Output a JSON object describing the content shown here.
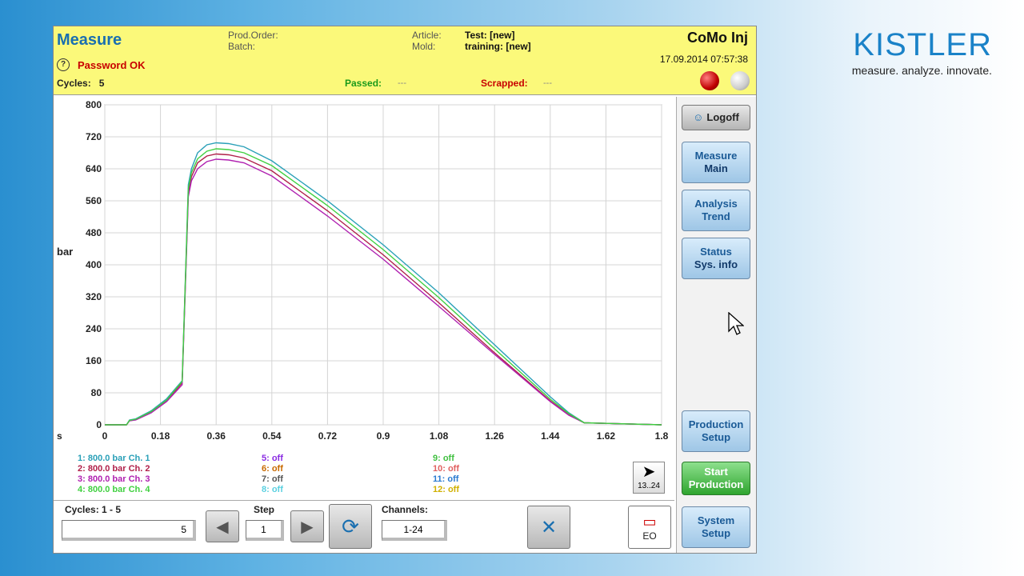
{
  "brand": {
    "name": "KISTLER",
    "tagline": "measure. analyze. innovate."
  },
  "header": {
    "title": "Measure",
    "password_status": "Password OK",
    "cycles_label": "Cycles:",
    "cycles_value": "5",
    "prod_order_label": "Prod.Order:",
    "batch_label": "Batch:",
    "article_label": "Article:",
    "mold_label": "Mold:",
    "article_value": "Test: [new]",
    "mold_value": "training: [new]",
    "passed_label": "Passed:",
    "passed_value": "---",
    "scrapped_label": "Scrapped:",
    "scrapped_value": "---",
    "mode": "CoMo Inj",
    "datetime": "17.09.2014  07:57:38"
  },
  "chart_data": {
    "type": "line",
    "ylabel": "bar",
    "xlabel": "s",
    "xlim": [
      0,
      1.8
    ],
    "ylim": [
      0,
      800
    ],
    "x_ticks": [
      "0",
      "0.18",
      "0.36",
      "0.54",
      "0.72",
      "0.9",
      "1.08",
      "1.26",
      "1.44",
      "1.62",
      "1.8"
    ],
    "y_ticks": [
      "0",
      "80",
      "160",
      "240",
      "320",
      "400",
      "480",
      "560",
      "640",
      "720",
      "800"
    ],
    "grid": true,
    "series": [
      {
        "name": "Ch. 1",
        "color": "#2aa0b8",
        "x": [
          0,
          0.07,
          0.08,
          0.1,
          0.15,
          0.2,
          0.25,
          0.27,
          0.28,
          0.3,
          0.33,
          0.36,
          0.4,
          0.45,
          0.54,
          0.72,
          0.9,
          1.08,
          1.26,
          1.44,
          1.5,
          1.55,
          1.8
        ],
        "y": [
          0,
          0,
          12,
          15,
          35,
          65,
          110,
          600,
          640,
          680,
          700,
          705,
          703,
          695,
          660,
          560,
          450,
          330,
          200,
          70,
          30,
          5,
          0
        ]
      },
      {
        "name": "Ch. 2",
        "color": "#b0204a",
        "x": [
          0,
          0.07,
          0.08,
          0.1,
          0.15,
          0.2,
          0.25,
          0.27,
          0.28,
          0.3,
          0.33,
          0.36,
          0.4,
          0.45,
          0.54,
          0.72,
          0.9,
          1.08,
          1.26,
          1.44,
          1.5,
          1.55,
          1.8
        ],
        "y": [
          0,
          0,
          10,
          13,
          32,
          60,
          105,
          580,
          620,
          655,
          672,
          677,
          675,
          667,
          635,
          535,
          425,
          305,
          180,
          60,
          25,
          5,
          0
        ]
      },
      {
        "name": "Ch. 3",
        "color": "#b020b0",
        "x": [
          0,
          0.07,
          0.08,
          0.1,
          0.15,
          0.2,
          0.25,
          0.27,
          0.28,
          0.3,
          0.33,
          0.36,
          0.4,
          0.45,
          0.54,
          0.72,
          0.9,
          1.08,
          1.26,
          1.44,
          1.5,
          1.55,
          1.8
        ],
        "y": [
          0,
          0,
          10,
          12,
          30,
          58,
          100,
          570,
          610,
          640,
          658,
          664,
          662,
          655,
          622,
          522,
          414,
          296,
          176,
          58,
          24,
          5,
          0
        ]
      },
      {
        "name": "Ch. 4",
        "color": "#40d040",
        "x": [
          0,
          0.07,
          0.08,
          0.1,
          0.15,
          0.2,
          0.25,
          0.27,
          0.28,
          0.3,
          0.33,
          0.36,
          0.4,
          0.45,
          0.54,
          0.72,
          0.9,
          1.08,
          1.26,
          1.44,
          1.5,
          1.55,
          1.8
        ],
        "y": [
          0,
          0,
          11,
          14,
          33,
          62,
          108,
          590,
          630,
          665,
          684,
          690,
          688,
          680,
          648,
          548,
          438,
          318,
          190,
          64,
          28,
          5,
          0
        ]
      }
    ]
  },
  "legend": {
    "ch1": "1: 800.0 bar  Ch. 1",
    "ch2": "2: 800.0 bar  Ch. 2",
    "ch3": "3: 800.0 bar  Ch. 3",
    "ch4": "4: 800.0 bar  Ch. 4",
    "c5": "5: off",
    "c6": "6: off",
    "c7": "7: off",
    "c8": "8: off",
    "c9": "9: off",
    "c10": "10: off",
    "c11": "11: off",
    "c12": "12: off"
  },
  "bottom": {
    "cycles_label": "Cycles:   1 - 5",
    "cycles_value": "5",
    "step_label": "Step",
    "step_value": "1",
    "channels_label": "Channels:",
    "channels_value": "1-24",
    "next_label": "13..24",
    "eo_label": "EO"
  },
  "sidebar": {
    "logoff": "Logoff",
    "measure_main": [
      "Measure",
      "Main"
    ],
    "analysis_trend": [
      "Analysis",
      "Trend"
    ],
    "status_sysinfo": [
      "Status",
      "Sys. info"
    ],
    "production_setup": [
      "Production",
      "Setup"
    ],
    "start_production": [
      "Start",
      "Production"
    ],
    "system_setup": [
      "System",
      "Setup"
    ]
  }
}
